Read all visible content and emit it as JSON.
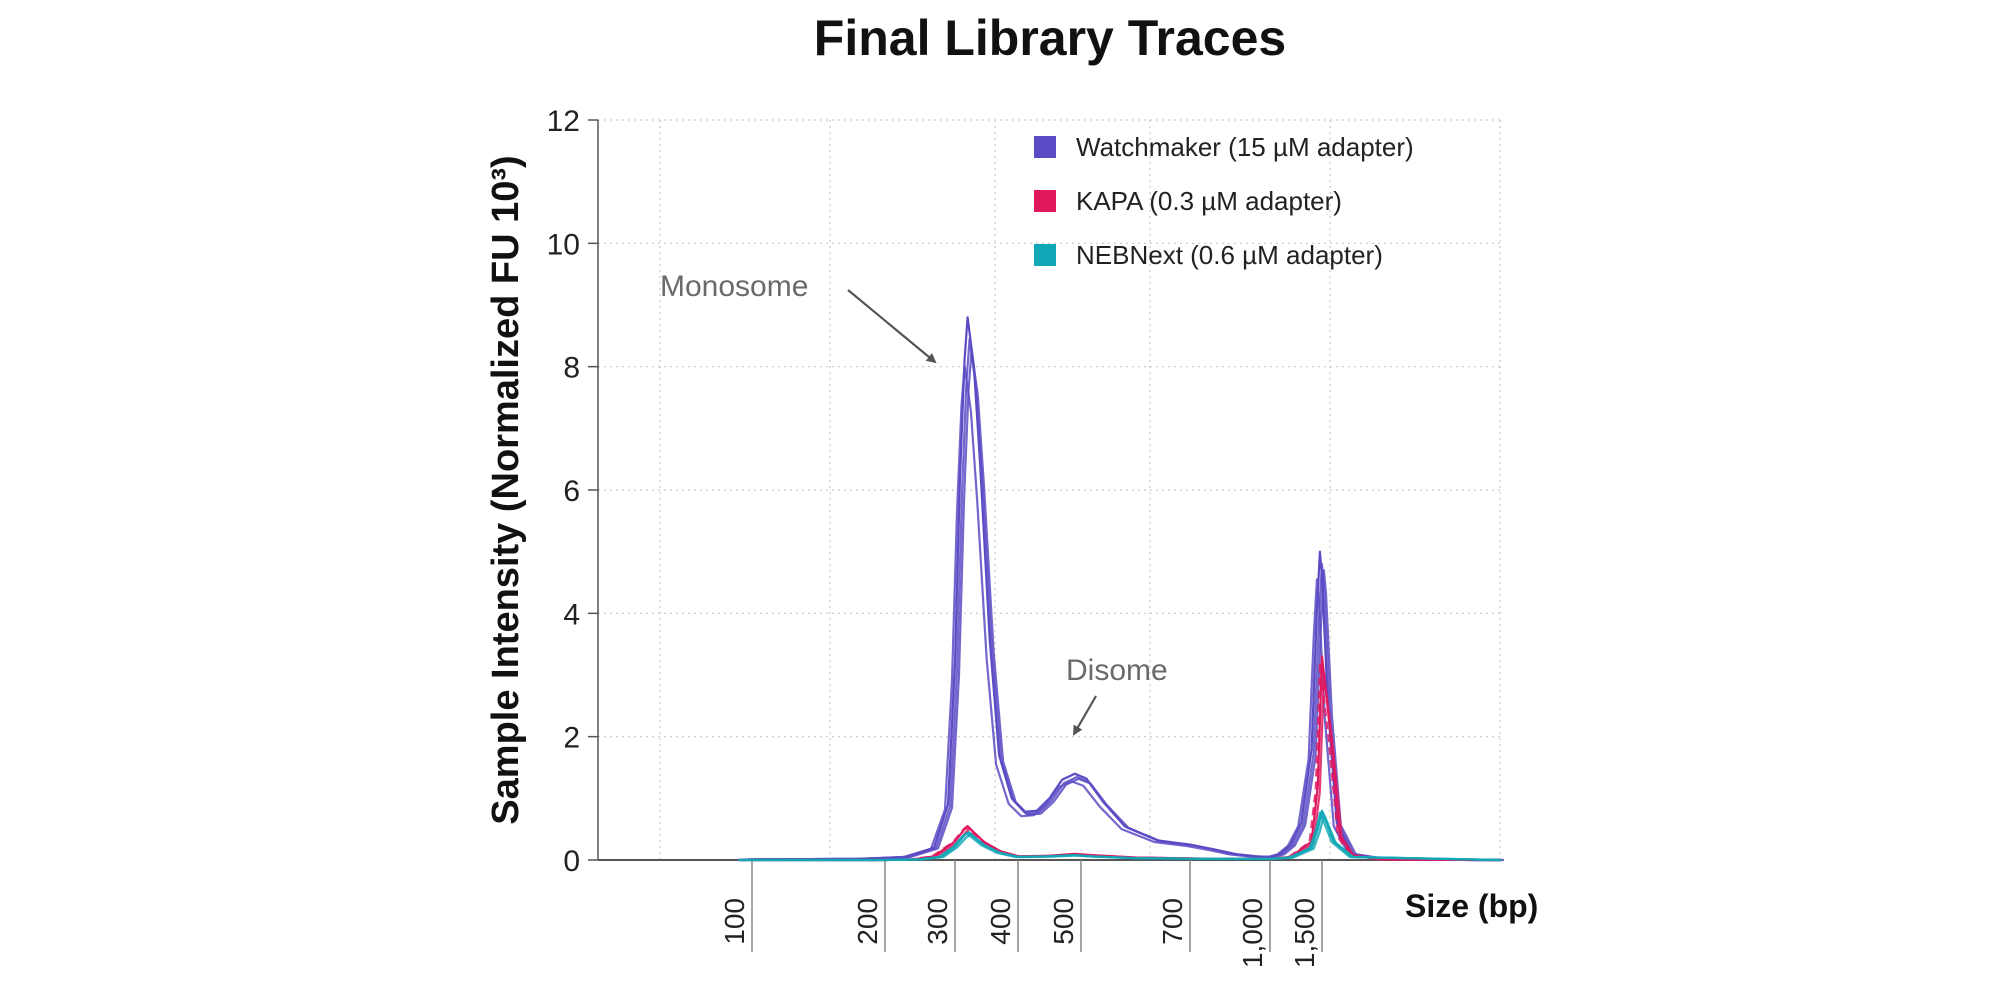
{
  "chart_data": {
    "type": "line",
    "title": "Final Library Traces",
    "ylabel": "Sample Intensity (Normalized FU 10³)",
    "xlabel": "Size (bp)",
    "ylim": [
      0,
      12
    ],
    "yticks": [
      0,
      2,
      4,
      6,
      8,
      10,
      12
    ],
    "xscale": "ladder",
    "xticks": [
      "100",
      "200",
      "300",
      "400",
      "500",
      "700",
      "1,000",
      "1,500"
    ],
    "grid": true,
    "legend_position": "top-right",
    "series": [
      {
        "name": "Watchmaker (15 µM adapter)",
        "color": "#5b4bc4",
        "x": [
          60,
          100,
          180,
          230,
          270,
          290,
          300,
          308,
          315,
          320,
          330,
          340,
          355,
          370,
          390,
          410,
          430,
          450,
          470,
          490,
          510,
          540,
          580,
          640,
          700,
          780,
          860,
          940,
          1000,
          1100,
          1200,
          1300,
          1400,
          1450,
          1480,
          1500,
          1520,
          1550,
          1600,
          1700,
          1900,
          2000,
          2100
        ],
        "values": [
          0,
          0.01,
          0.02,
          0.05,
          0.2,
          0.9,
          3.2,
          6.2,
          8.1,
          8.8,
          8.0,
          6.4,
          3.6,
          1.7,
          1.0,
          0.78,
          0.8,
          1.0,
          1.3,
          1.4,
          1.32,
          0.95,
          0.55,
          0.32,
          0.25,
          0.18,
          0.1,
          0.06,
          0.05,
          0.1,
          0.25,
          0.6,
          1.8,
          4.0,
          5.0,
          4.6,
          2.5,
          0.6,
          0.1,
          0.02,
          0.01,
          0,
          0
        ]
      },
      {
        "name": "KAPA (0.3 µM adapter)",
        "color": "#e0195f",
        "x": [
          60,
          200,
          240,
          270,
          300,
          315,
          320,
          330,
          345,
          370,
          400,
          450,
          490,
          520,
          600,
          800,
          1000,
          1200,
          1400,
          1460,
          1500,
          1530,
          1560,
          1600,
          1700,
          2100
        ],
        "values": [
          0,
          0,
          0.01,
          0.06,
          0.3,
          0.5,
          0.55,
          0.45,
          0.3,
          0.15,
          0.06,
          0.07,
          0.1,
          0.08,
          0.04,
          0.02,
          0.02,
          0.05,
          0.3,
          1.2,
          3.3,
          2.0,
          0.4,
          0.08,
          0.01,
          0
        ]
      },
      {
        "name": "NEBNext (0.6 µM adapter)",
        "color": "#10a8b6",
        "x": [
          60,
          200,
          250,
          280,
          300,
          315,
          322,
          330,
          345,
          370,
          400,
          450,
          490,
          520,
          600,
          800,
          1000,
          1200,
          1400,
          1460,
          1500,
          1540,
          1600,
          2100
        ],
        "values": [
          0,
          0,
          0.01,
          0.05,
          0.22,
          0.4,
          0.45,
          0.38,
          0.25,
          0.12,
          0.05,
          0.06,
          0.08,
          0.06,
          0.03,
          0.02,
          0.02,
          0.04,
          0.2,
          0.5,
          0.8,
          0.3,
          0.05,
          0
        ]
      }
    ],
    "annotations": [
      {
        "text": "Monosome",
        "x": 320,
        "y": 8.2
      },
      {
        "text": "Disome",
        "x": 490,
        "y": 2.0
      }
    ]
  }
}
